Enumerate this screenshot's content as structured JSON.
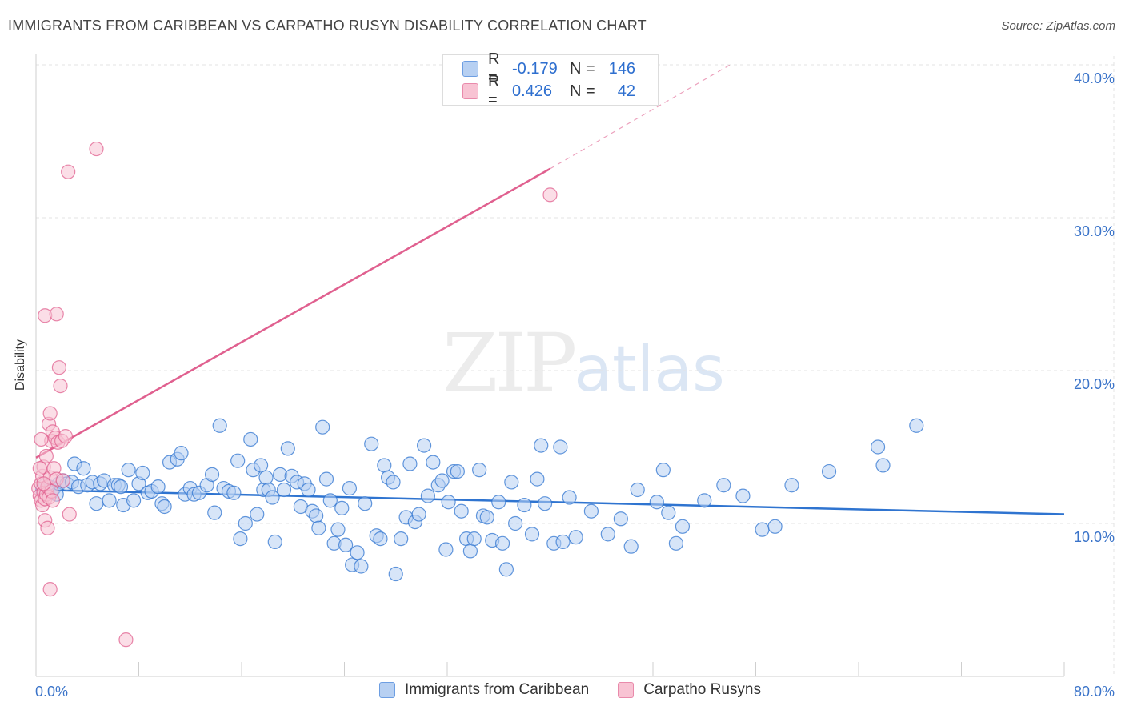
{
  "title": "IMMIGRANTS FROM CARIBBEAN VS CARPATHO RUSYN DISABILITY CORRELATION CHART",
  "source": "Source: ZipAtlas.com",
  "watermark": {
    "zip": "ZIP",
    "atlas": "atlas"
  },
  "colors": {
    "blue": "#2f74d0",
    "blue_fill": "#b7d0f2",
    "pink": "#e0608f",
    "pink_fill": "#f8c3d3",
    "tick_label": "#3b74c9"
  },
  "legend": [
    {
      "r_label": "R =",
      "r_value": "-0.179",
      "n_label": "N =",
      "n_value": "146"
    },
    {
      "r_label": "R =",
      "r_value": "0.426",
      "n_label": "N =",
      "n_value": "42"
    }
  ],
  "chart_data": {
    "type": "scatter",
    "title": "IMMIGRANTS FROM CARIBBEAN VS CARPATHO RUSYN DISABILITY CORRELATION CHART",
    "xlabel": "",
    "ylabel": "Disability",
    "xlim": [
      0,
      80
    ],
    "ylim": [
      0,
      42
    ],
    "x_tick_labels": [
      "0.0%",
      "80.0%"
    ],
    "y_ticks": [
      10,
      20,
      30,
      40
    ],
    "y_tick_labels": [
      "10.0%",
      "20.0%",
      "30.0%",
      "40.0%"
    ],
    "grid": true,
    "legend_position": "top-center",
    "series": [
      {
        "name": "Immigrants from Caribbean",
        "r": -0.179,
        "n": 146,
        "trend": {
          "x": [
            0,
            80
          ],
          "y": [
            12.2,
            10.6
          ],
          "dashed_to": null
        },
        "points": [
          [
            0.5,
            12.2
          ],
          [
            0.7,
            12.5
          ],
          [
            0.9,
            12.1
          ],
          [
            1.0,
            12.4
          ],
          [
            1.2,
            12.0
          ],
          [
            1.4,
            12.3
          ],
          [
            1.6,
            11.9
          ],
          [
            1.8,
            12.6
          ],
          [
            2.1,
            12.8
          ],
          [
            2.4,
            12.6
          ],
          [
            2.8,
            12.7
          ],
          [
            3.0,
            13.9
          ],
          [
            3.3,
            12.4
          ],
          [
            3.7,
            13.6
          ],
          [
            4.0,
            12.5
          ],
          [
            4.4,
            12.7
          ],
          [
            4.7,
            11.3
          ],
          [
            5.0,
            12.6
          ],
          [
            5.3,
            12.8
          ],
          [
            5.7,
            11.5
          ],
          [
            6.1,
            12.5
          ],
          [
            6.4,
            12.5
          ],
          [
            6.8,
            11.2
          ],
          [
            7.2,
            13.5
          ],
          [
            7.6,
            11.5
          ],
          [
            8.0,
            12.6
          ],
          [
            8.3,
            13.3
          ],
          [
            8.7,
            12.0
          ],
          [
            9.0,
            12.1
          ],
          [
            9.5,
            12.4
          ],
          [
            9.8,
            11.3
          ],
          [
            10.0,
            11.1
          ],
          [
            10.4,
            14.0
          ],
          [
            11.0,
            14.2
          ],
          [
            11.3,
            14.6
          ],
          [
            11.6,
            11.9
          ],
          [
            12.0,
            12.3
          ],
          [
            12.3,
            11.9
          ],
          [
            12.7,
            12.0
          ],
          [
            13.3,
            12.5
          ],
          [
            13.7,
            13.2
          ],
          [
            13.9,
            10.7
          ],
          [
            14.3,
            16.4
          ],
          [
            14.6,
            12.3
          ],
          [
            15.0,
            12.1
          ],
          [
            15.4,
            12.0
          ],
          [
            15.7,
            14.1
          ],
          [
            15.9,
            9.0
          ],
          [
            16.3,
            10.0
          ],
          [
            16.7,
            15.5
          ],
          [
            16.9,
            13.5
          ],
          [
            17.2,
            10.6
          ],
          [
            17.5,
            13.8
          ],
          [
            17.7,
            12.2
          ],
          [
            17.9,
            13.0
          ],
          [
            18.1,
            12.2
          ],
          [
            18.4,
            11.7
          ],
          [
            18.6,
            8.8
          ],
          [
            19.0,
            13.2
          ],
          [
            19.3,
            12.2
          ],
          [
            19.6,
            14.9
          ],
          [
            19.9,
            13.1
          ],
          [
            20.3,
            12.7
          ],
          [
            20.6,
            11.1
          ],
          [
            20.9,
            12.6
          ],
          [
            21.2,
            12.2
          ],
          [
            21.5,
            10.8
          ],
          [
            21.8,
            10.5
          ],
          [
            22.0,
            9.7
          ],
          [
            22.3,
            16.3
          ],
          [
            22.6,
            12.9
          ],
          [
            22.9,
            11.5
          ],
          [
            23.2,
            8.7
          ],
          [
            23.5,
            9.6
          ],
          [
            23.8,
            11.0
          ],
          [
            24.1,
            8.6
          ],
          [
            24.4,
            12.3
          ],
          [
            24.6,
            7.3
          ],
          [
            25.0,
            8.1
          ],
          [
            25.3,
            7.2
          ],
          [
            25.6,
            11.3
          ],
          [
            26.1,
            15.2
          ],
          [
            26.5,
            9.2
          ],
          [
            26.8,
            9.0
          ],
          [
            27.1,
            13.8
          ],
          [
            27.4,
            13.0
          ],
          [
            27.8,
            12.7
          ],
          [
            28.0,
            6.7
          ],
          [
            28.4,
            9.0
          ],
          [
            28.8,
            10.4
          ],
          [
            29.1,
            13.9
          ],
          [
            29.5,
            10.1
          ],
          [
            29.8,
            10.6
          ],
          [
            30.2,
            15.1
          ],
          [
            30.5,
            11.8
          ],
          [
            30.9,
            14.0
          ],
          [
            31.3,
            12.5
          ],
          [
            31.6,
            12.8
          ],
          [
            31.9,
            8.3
          ],
          [
            32.1,
            11.4
          ],
          [
            32.5,
            13.4
          ],
          [
            32.8,
            13.4
          ],
          [
            33.1,
            10.8
          ],
          [
            33.5,
            9.0
          ],
          [
            33.8,
            8.2
          ],
          [
            34.1,
            9.0
          ],
          [
            34.5,
            13.5
          ],
          [
            34.8,
            10.5
          ],
          [
            35.1,
            10.4
          ],
          [
            35.5,
            8.9
          ],
          [
            36.0,
            11.4
          ],
          [
            36.3,
            8.7
          ],
          [
            36.6,
            7.0
          ],
          [
            37.0,
            12.7
          ],
          [
            37.3,
            10.0
          ],
          [
            38.0,
            11.2
          ],
          [
            38.6,
            9.3
          ],
          [
            39.0,
            12.9
          ],
          [
            39.3,
            15.1
          ],
          [
            39.6,
            11.3
          ],
          [
            40.3,
            8.7
          ],
          [
            40.8,
            15.0
          ],
          [
            41.0,
            8.8
          ],
          [
            41.5,
            11.7
          ],
          [
            42.0,
            9.1
          ],
          [
            43.2,
            10.8
          ],
          [
            44.5,
            9.3
          ],
          [
            45.5,
            10.3
          ],
          [
            46.3,
            8.5
          ],
          [
            46.8,
            12.2
          ],
          [
            48.3,
            11.4
          ],
          [
            48.8,
            13.5
          ],
          [
            49.2,
            10.7
          ],
          [
            49.8,
            8.7
          ],
          [
            50.3,
            9.8
          ],
          [
            52.0,
            11.5
          ],
          [
            53.5,
            12.5
          ],
          [
            55.0,
            11.8
          ],
          [
            56.5,
            9.6
          ],
          [
            57.5,
            9.8
          ],
          [
            58.8,
            12.5
          ],
          [
            61.7,
            13.4
          ],
          [
            65.5,
            15.0
          ],
          [
            65.9,
            13.8
          ],
          [
            68.5,
            16.4
          ],
          [
            6.6,
            12.4
          ]
        ]
      },
      {
        "name": "Carpatho Rusyns",
        "r": 0.426,
        "n": 42,
        "trend": {
          "x": [
            0,
            40
          ],
          "y": [
            14.3,
            33.2
          ],
          "dashed_x": [
            40,
            54
          ],
          "dashed_y": [
            33.2,
            40.0
          ]
        },
        "points": [
          [
            0.2,
            12.3
          ],
          [
            0.3,
            11.8
          ],
          [
            0.4,
            12.6
          ],
          [
            0.4,
            11.5
          ],
          [
            0.5,
            13.1
          ],
          [
            0.5,
            11.2
          ],
          [
            0.6,
            13.7
          ],
          [
            0.6,
            12.0
          ],
          [
            0.7,
            11.6
          ],
          [
            0.7,
            10.2
          ],
          [
            0.8,
            14.4
          ],
          [
            0.8,
            11.9
          ],
          [
            0.9,
            12.4
          ],
          [
            0.9,
            9.7
          ],
          [
            1.0,
            16.5
          ],
          [
            1.0,
            11.7
          ],
          [
            1.1,
            13.0
          ],
          [
            1.1,
            17.2
          ],
          [
            1.2,
            15.4
          ],
          [
            1.2,
            12.1
          ],
          [
            1.3,
            16.0
          ],
          [
            1.3,
            11.5
          ],
          [
            1.4,
            13.6
          ],
          [
            1.5,
            15.6
          ],
          [
            1.6,
            12.9
          ],
          [
            1.7,
            15.3
          ],
          [
            1.8,
            20.2
          ],
          [
            1.9,
            19.0
          ],
          [
            2.0,
            15.4
          ],
          [
            2.1,
            12.8
          ],
          [
            2.3,
            15.7
          ],
          [
            2.6,
            10.6
          ],
          [
            0.7,
            23.6
          ],
          [
            1.6,
            23.7
          ],
          [
            2.5,
            33.0
          ],
          [
            4.7,
            34.5
          ],
          [
            40.0,
            31.5
          ],
          [
            1.1,
            5.7
          ],
          [
            7.0,
            2.4
          ],
          [
            0.3,
            13.6
          ],
          [
            0.4,
            15.5
          ],
          [
            0.6,
            12.6
          ]
        ]
      }
    ]
  },
  "bottom_legend": [
    "Immigrants from Caribbean",
    "Carpatho Rusyns"
  ]
}
